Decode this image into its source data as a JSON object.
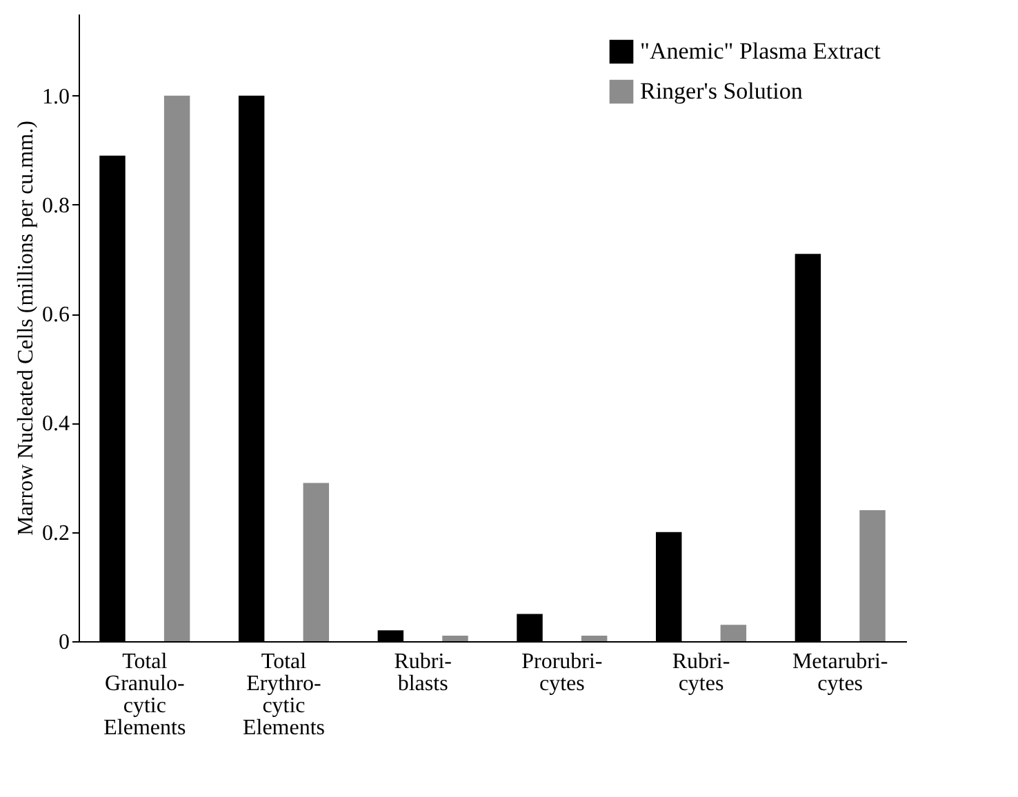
{
  "chart_data": {
    "type": "bar",
    "ylabel": "Marrow Nucleated Cells (millions per cu.mm.)",
    "categories": [
      "Total\nGranulo-\ncytic\nElements",
      "Total\nErythro-\ncytic\nElements",
      "Rubri-\nblasts",
      "Prorubri-\ncytes",
      "Rubri-\ncytes",
      "Metarubri-\ncytes"
    ],
    "series": [
      {
        "name": "\"Anemic\" Plasma Extract",
        "color": "#000000",
        "values": [
          0.89,
          1.0,
          0.02,
          0.05,
          0.2,
          0.71
        ]
      },
      {
        "name": "Ringer's Solution",
        "color": "#8c8c8c",
        "values": [
          1.0,
          0.29,
          0.01,
          0.01,
          0.03,
          0.24
        ]
      }
    ],
    "ylim": [
      0,
      1.15
    ],
    "yticks": [
      0,
      0.2,
      0.4,
      0.6,
      0.8,
      {
        "value": 1.0,
        "label": "1.0"
      }
    ],
    "grid": false,
    "legend": "top right"
  }
}
